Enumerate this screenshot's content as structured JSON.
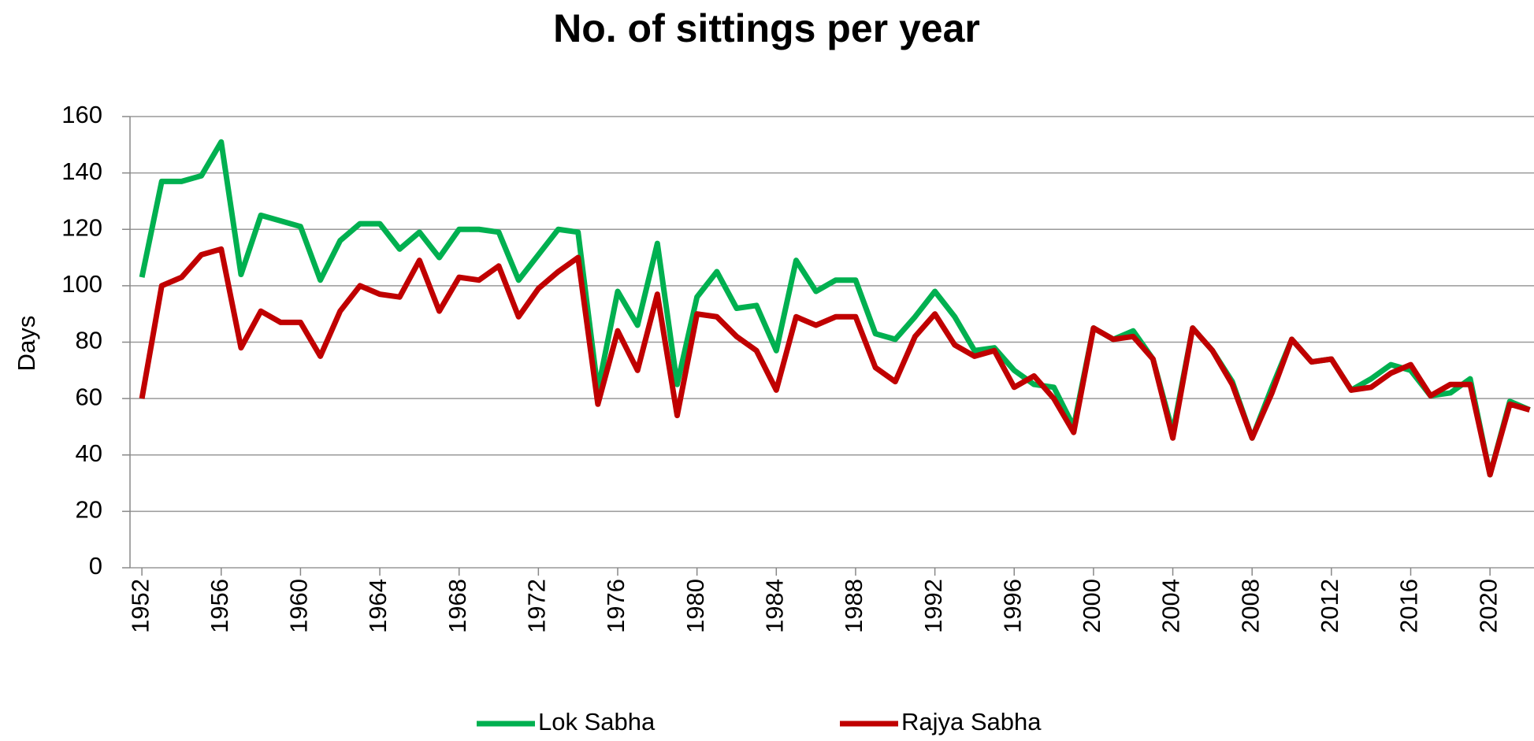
{
  "chart_data": {
    "type": "line",
    "title": "No. of sittings per year",
    "ylabel": "Days",
    "x": [
      1952,
      1953,
      1954,
      1955,
      1956,
      1957,
      1958,
      1959,
      1960,
      1961,
      1962,
      1963,
      1964,
      1965,
      1966,
      1967,
      1968,
      1969,
      1970,
      1971,
      1972,
      1973,
      1974,
      1975,
      1976,
      1977,
      1978,
      1979,
      1980,
      1981,
      1982,
      1983,
      1984,
      1985,
      1986,
      1987,
      1988,
      1989,
      1990,
      1991,
      1992,
      1993,
      1994,
      1995,
      1996,
      1997,
      1998,
      1999,
      2000,
      2001,
      2002,
      2003,
      2004,
      2005,
      2006,
      2007,
      2008,
      2009,
      2010,
      2011,
      2012,
      2013,
      2014,
      2015,
      2016,
      2017,
      2018,
      2019,
      2020,
      2021,
      2022
    ],
    "series": [
      {
        "name": "Lok Sabha",
        "color": "#00b050",
        "values": [
          103,
          137,
          137,
          139,
          151,
          104,
          125,
          123,
          121,
          102,
          116,
          122,
          122,
          113,
          119,
          110,
          120,
          120,
          119,
          102,
          111,
          120,
          119,
          63,
          98,
          86,
          115,
          65,
          96,
          105,
          92,
          93,
          77,
          109,
          98,
          102,
          102,
          83,
          81,
          89,
          98,
          89,
          77,
          78,
          70,
          65,
          64,
          50,
          85,
          81,
          84,
          74,
          48,
          85,
          77,
          66,
          46,
          64,
          81,
          73,
          74,
          63,
          67,
          72,
          70,
          61,
          62,
          67,
          33,
          59,
          56
        ]
      },
      {
        "name": "Rajya Sabha",
        "color": "#c00000",
        "values": [
          60,
          100,
          103,
          111,
          113,
          78,
          91,
          87,
          87,
          75,
          91,
          100,
          97,
          96,
          109,
          91,
          103,
          102,
          107,
          89,
          99,
          105,
          110,
          58,
          84,
          70,
          97,
          54,
          90,
          89,
          82,
          77,
          63,
          89,
          86,
          89,
          89,
          71,
          66,
          82,
          90,
          79,
          75,
          77,
          64,
          68,
          60,
          48,
          85,
          81,
          82,
          74,
          46,
          85,
          77,
          65,
          46,
          62,
          81,
          73,
          74,
          63,
          64,
          69,
          72,
          61,
          65,
          65,
          33,
          58,
          56
        ]
      }
    ],
    "xlim": [
      1951.4,
      2022.1
    ],
    "xticks": [
      1952,
      1956,
      1960,
      1964,
      1968,
      1972,
      1976,
      1980,
      1984,
      1988,
      1992,
      1996,
      2000,
      2004,
      2008,
      2012,
      2016,
      2020
    ],
    "ylim": [
      0,
      160
    ],
    "yticks": [
      0,
      20,
      40,
      60,
      80,
      100,
      120,
      140,
      160
    ],
    "grid": true,
    "legend": "bottom"
  }
}
